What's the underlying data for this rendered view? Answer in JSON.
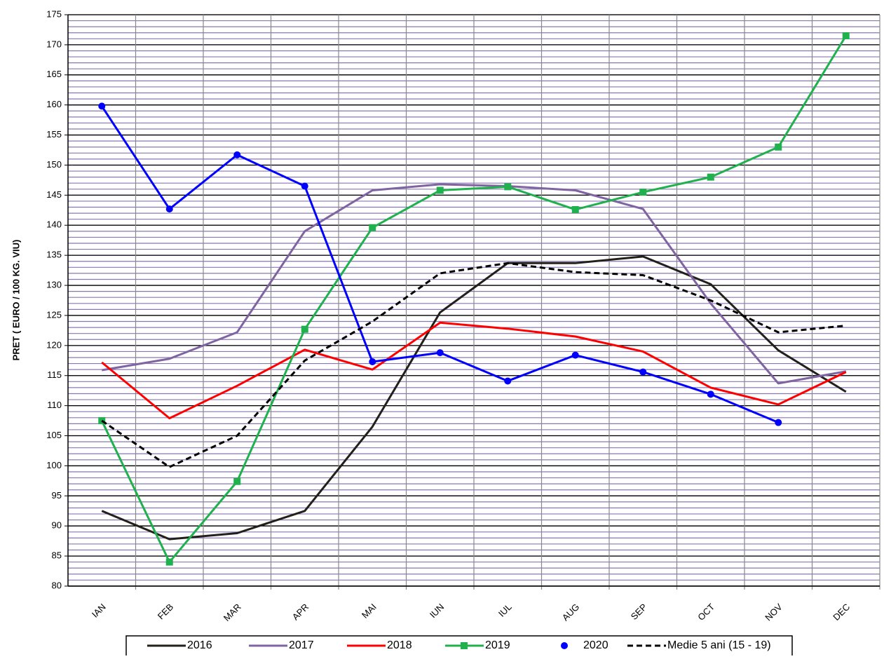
{
  "chart_data": {
    "type": "line",
    "y_axis_label": "PRET ( EURO / 100 KG. VIU)",
    "categories": [
      "IAN",
      "FEB",
      "MAR",
      "APR",
      "MAI",
      "IUN",
      "IUL",
      "AUG",
      "SEP",
      "OCT",
      "NOV",
      "DEC"
    ],
    "ylim": [
      80,
      175
    ],
    "yticks": [
      80,
      85,
      90,
      95,
      100,
      105,
      110,
      115,
      120,
      125,
      130,
      135,
      140,
      145,
      150,
      155,
      160,
      165,
      170,
      175
    ],
    "minor_grid_step": 1,
    "grid": true,
    "legend": "bottom",
    "series": [
      {
        "name": "2016",
        "color": "#231f1a",
        "values": [
          92.5,
          87.8,
          88.8,
          92.5,
          106.5,
          125.5,
          133.7,
          133.7,
          134.8,
          130.2,
          119.2,
          112.3
        ]
      },
      {
        "name": "2017",
        "color": "#8064a2",
        "values": [
          115.9,
          117.8,
          122.2,
          139,
          145.8,
          146.8,
          146.5,
          145.8,
          142.7,
          127,
          113.7,
          115.7
        ]
      },
      {
        "name": "2018",
        "color": "#ff0000",
        "values": [
          117.2,
          107.9,
          113.3,
          119.3,
          116,
          123.8,
          122.8,
          121.5,
          119,
          113,
          110.2,
          115.6
        ]
      },
      {
        "name": "2019",
        "color": "#1fb14d",
        "marker": "square",
        "values": [
          107.5,
          84,
          97.4,
          122.7,
          139.6,
          145.8,
          146.4,
          142.6,
          145.5,
          148,
          153,
          171.5
        ]
      },
      {
        "name": "2020",
        "color": "#0000ff",
        "marker": "circle",
        "values": [
          159.8,
          142.7,
          151.7,
          146.5,
          117.3,
          118.8,
          114.1,
          118.4,
          115.6,
          111.9,
          107.2,
          null
        ]
      },
      {
        "name": "Medie 5 ani (15 - 19)",
        "color": "#000000",
        "dash": true,
        "values": [
          107.5,
          99.8,
          105,
          117.5,
          124,
          132,
          133.7,
          132.2,
          131.7,
          127.5,
          122.2,
          123.3
        ]
      }
    ]
  }
}
